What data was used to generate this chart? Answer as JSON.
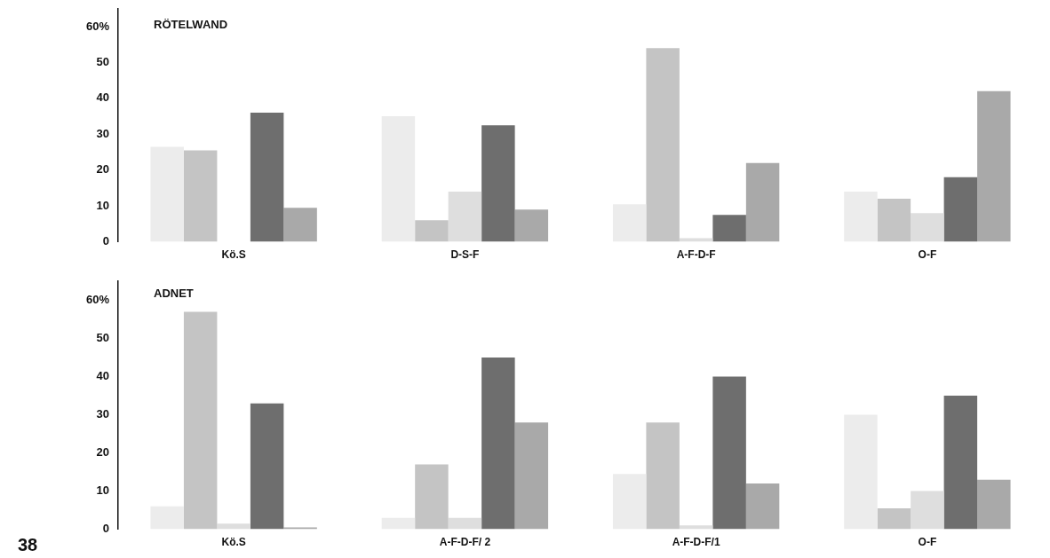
{
  "chart_data": [
    {
      "type": "bar",
      "title": "RÖTELWAND",
      "categories": [
        "Kö.S",
        "D-S-F",
        "A-F-D-F",
        "O-F"
      ],
      "series": [
        {
          "color": "#ececec",
          "values": [
            26.5,
            35,
            10.5,
            14
          ]
        },
        {
          "color": "#c4c4c4",
          "values": [
            25.5,
            6,
            54,
            12
          ]
        },
        {
          "color": "#dedede",
          "values": [
            0,
            14,
            1,
            8
          ]
        },
        {
          "color": "#6e6e6e",
          "values": [
            36,
            32.5,
            7.5,
            18
          ]
        },
        {
          "color": "#a9a9a9",
          "values": [
            9.5,
            9,
            22,
            42
          ]
        }
      ],
      "ylim": [
        0,
        65
      ],
      "yticks": [
        0,
        10,
        20,
        30,
        40,
        50,
        {
          "value": 60,
          "label": "60%"
        }
      ],
      "grid": false,
      "legend": false
    },
    {
      "type": "bar",
      "title": "ADNET",
      "categories": [
        "Kö.S",
        "A-F-D-F/ 2",
        "A-F-D-F/1",
        "O-F"
      ],
      "series": [
        {
          "color": "#ececec",
          "values": [
            6,
            3,
            14.5,
            30
          ]
        },
        {
          "color": "#c4c4c4",
          "values": [
            57,
            17,
            28,
            5.5
          ]
        },
        {
          "color": "#dedede",
          "values": [
            1.5,
            3,
            1,
            10
          ]
        },
        {
          "color": "#6e6e6e",
          "values": [
            33,
            45,
            40,
            35
          ]
        },
        {
          "color": "#a9a9a9",
          "values": [
            0.5,
            28,
            12,
            13
          ]
        }
      ],
      "ylim": [
        0,
        65
      ],
      "yticks": [
        0,
        10,
        20,
        30,
        40,
        50,
        {
          "value": 60,
          "label": "60%"
        }
      ],
      "grid": false,
      "legend": false,
      "annotations": [
        "38"
      ]
    }
  ]
}
